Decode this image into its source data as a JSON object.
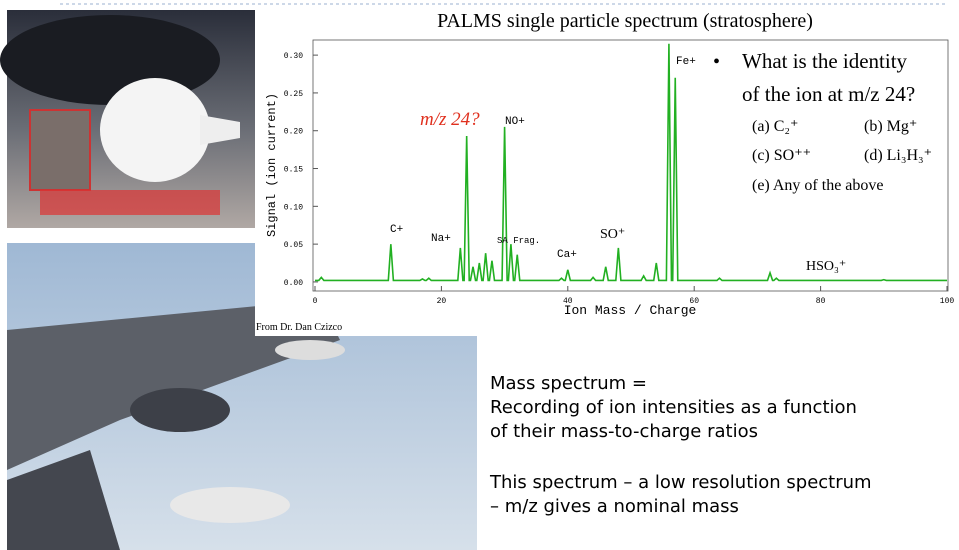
{
  "chart_data": {
    "type": "line",
    "title": "PALMS single particle spectrum (stratosphere)",
    "xlabel": "Ion Mass / Charge",
    "ylabel": "Signal (ion current)",
    "color": "#22b022",
    "xlim": [
      0,
      100
    ],
    "xticks": [
      0,
      20,
      40,
      60,
      80,
      100
    ],
    "ylim": [
      -0.012,
      0.32
    ],
    "yticks": [
      {
        "value": 0,
        "label": "0.00"
      },
      {
        "value": 0.05,
        "label": "0.05"
      },
      {
        "value": 0.1,
        "label": "0.10"
      },
      {
        "value": 0.15,
        "label": "0.15"
      },
      {
        "value": 0.2,
        "label": "0.20"
      },
      {
        "value": 0.25,
        "label": "0.25"
      },
      {
        "value": 0.3,
        "label": "0.30"
      }
    ],
    "x": [
      0,
      0.6,
      1,
      1.4,
      11.6,
      12,
      12.4,
      16.6,
      17,
      17.4,
      17.6,
      18,
      18.4,
      22.6,
      23,
      23.4,
      23.6,
      24,
      24.4,
      24.6,
      25,
      25.4,
      25.6,
      26,
      26.4,
      26.6,
      27,
      27.4,
      27.6,
      28,
      28.4,
      29.6,
      30,
      30.4,
      30.6,
      31,
      31.4,
      31.6,
      32,
      32.4,
      38.6,
      39,
      39.4,
      39.6,
      40,
      40.4,
      43.6,
      44,
      44.4,
      45.6,
      46,
      46.4,
      47.6,
      48,
      48.4,
      51.6,
      52,
      52.4,
      53.6,
      54,
      54.4,
      55.6,
      56,
      56.4,
      56.6,
      57,
      57.4,
      63.6,
      64,
      64.4,
      71.6,
      72,
      72.4,
      72.6,
      73,
      73.4,
      89.6,
      90,
      90.4,
      100
    ],
    "values": [
      0.002,
      0.002,
      0.006,
      0.002,
      0.002,
      0.05,
      0.002,
      0.002,
      0.004,
      0.002,
      0.002,
      0.005,
      0.002,
      0.002,
      0.045,
      0.002,
      0.002,
      0.193,
      0.002,
      0.002,
      0.02,
      0.002,
      0.002,
      0.025,
      0.002,
      0.002,
      0.038,
      0.002,
      0.002,
      0.028,
      0.002,
      0.002,
      0.205,
      0.002,
      0.002,
      0.05,
      0.002,
      0.002,
      0.036,
      0.002,
      0.002,
      0.005,
      0.002,
      0.002,
      0.016,
      0.002,
      0.002,
      0.006,
      0.002,
      0.002,
      0.02,
      0.002,
      0.002,
      0.045,
      0.002,
      0.002,
      0.008,
      0.002,
      0.002,
      0.025,
      0.002,
      0.002,
      0.315,
      0.002,
      0.002,
      0.27,
      0.002,
      0.002,
      0.005,
      0.002,
      0.002,
      0.012,
      0.002,
      0.002,
      0.005,
      0.002,
      0.002,
      0.003,
      0.002,
      0.002
    ],
    "annotations": [
      "C+",
      "Na+",
      "m/z 24?",
      "NO+",
      "SA Frag.",
      "Ca+",
      "SO⁺",
      "Fe+",
      "HSO₃⁺"
    ]
  },
  "credit": "From Dr. Dan Czizco",
  "question": {
    "text": [
      "What is the identity",
      "of the ion at m/z 24?"
    ],
    "options": [
      "(a) C₂⁺",
      "(b) Mg⁺",
      "(c) SO⁺⁺",
      "(d) Li₃H₃⁺",
      "(e) Any of the above"
    ]
  },
  "body": [
    "Mass spectrum =",
    "Recording of ion intensities as a function",
    "of their mass-to-charge ratios",
    "This spectrum – a low resolution spectrum",
    "– m/z gives a nominal mass"
  ]
}
